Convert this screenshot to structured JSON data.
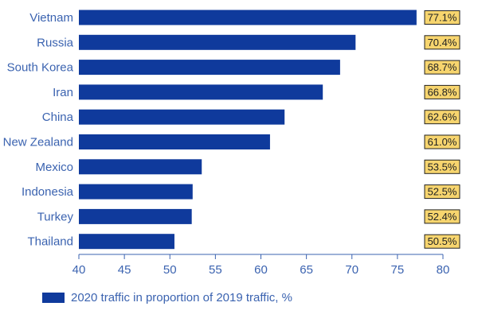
{
  "chart_data": {
    "type": "bar",
    "orientation": "horizontal",
    "categories": [
      "Vietnam",
      "Russia",
      "South Korea",
      "Iran",
      "China",
      "New Zealand",
      "Mexico",
      "Indonesia",
      "Turkey",
      "Thailand"
    ],
    "values": [
      77.1,
      70.4,
      68.7,
      66.8,
      62.6,
      61.0,
      53.5,
      52.5,
      52.4,
      50.5
    ],
    "value_labels": [
      "77.1%",
      "70.4%",
      "68.7%",
      "66.8%",
      "62.6%",
      "61.0%",
      "53.5%",
      "52.5%",
      "52.4%",
      "50.5%"
    ],
    "xlim": [
      40,
      80
    ],
    "xticks": [
      40,
      45,
      50,
      55,
      60,
      65,
      70,
      75,
      80
    ],
    "series_name": "2020 traffic in proportion of 2019 traffic, %",
    "legend_position": "bottom-left",
    "grid": false,
    "colors": {
      "bar": "#0f3a9c",
      "label_box": "#f7d56e",
      "label_border": "#222222",
      "axis": "#3b63b0"
    }
  }
}
